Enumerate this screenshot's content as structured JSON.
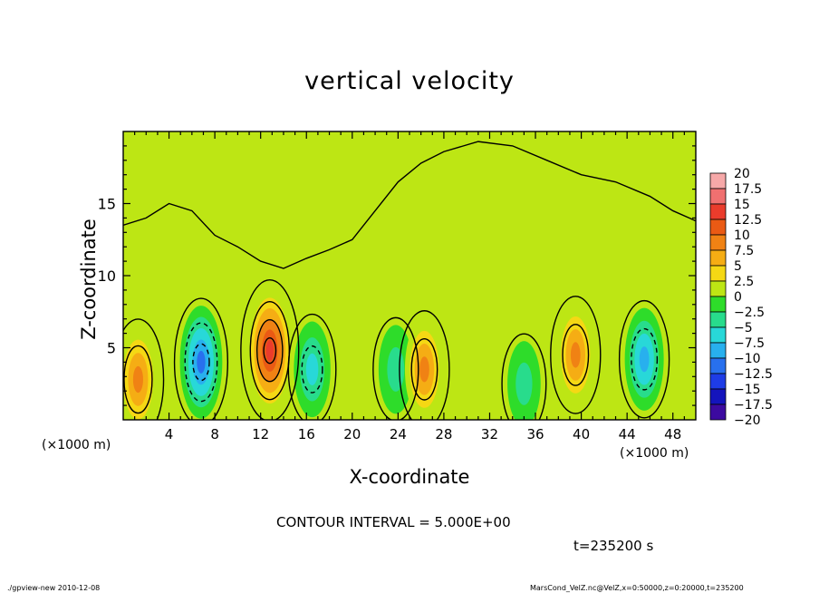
{
  "chart_data": {
    "type": "heatmap",
    "title": "vertical velocity",
    "xlabel": "X-coordinate",
    "ylabel": "Z-coordinate",
    "x_unit": "(×1000 m)",
    "xlim": [
      0,
      50
    ],
    "ylim": [
      0,
      20
    ],
    "x_ticks": [
      "4",
      "8",
      "12",
      "16",
      "20",
      "24",
      "28",
      "32",
      "36",
      "40",
      "44",
      "48"
    ],
    "y_ticks": [
      "5",
      "10",
      "15"
    ],
    "colorbar": {
      "labels": [
        "20",
        "17.5",
        "15",
        "12.5",
        "10",
        "7.5",
        "5",
        "2.5",
        "0",
        "−2.5",
        "−5",
        "−7.5",
        "−10",
        "−12.5",
        "−15",
        "−17.5",
        "−20"
      ],
      "colors": [
        "#f6a8a8",
        "#f07070",
        "#ea3c2c",
        "#ea5a14",
        "#f08214",
        "#f5ad14",
        "#f5d814",
        "#bde614",
        "#2edc2a",
        "#28dc8c",
        "#28d8d8",
        "#28b0ee",
        "#2870ee",
        "#1e3ce6",
        "#1414bc",
        "#3c0aa0"
      ]
    },
    "cells": [
      {
        "x": 1.3,
        "z": 2.8,
        "w": 9,
        "label": "positive"
      },
      {
        "x": 6.8,
        "z": 4.0,
        "w": -11,
        "label": "negative"
      },
      {
        "x": 12.8,
        "z": 4.8,
        "w": 15,
        "label": "positive"
      },
      {
        "x": 16.5,
        "z": 3.5,
        "w": -6,
        "label": "negative"
      },
      {
        "x": 23.8,
        "z": 3.5,
        "w": -4,
        "label": "negative"
      },
      {
        "x": 26.3,
        "z": 3.5,
        "w": 8,
        "label": "positive"
      },
      {
        "x": 35.0,
        "z": 2.5,
        "w": -3,
        "label": "negative"
      },
      {
        "x": 39.5,
        "z": 4.5,
        "w": 8,
        "label": "positive"
      },
      {
        "x": 45.5,
        "z": 4.2,
        "w": -8,
        "label": "negative"
      }
    ],
    "contour_interval": "CONTOUR INTERVAL = 5.000E+00",
    "time": "t=235200 s"
  },
  "footer": {
    "left": "./gpview-new  2010-12-08",
    "right": "MarsCond_VelZ.nc@VelZ,x=0:50000,z=0:20000,t=235200"
  }
}
